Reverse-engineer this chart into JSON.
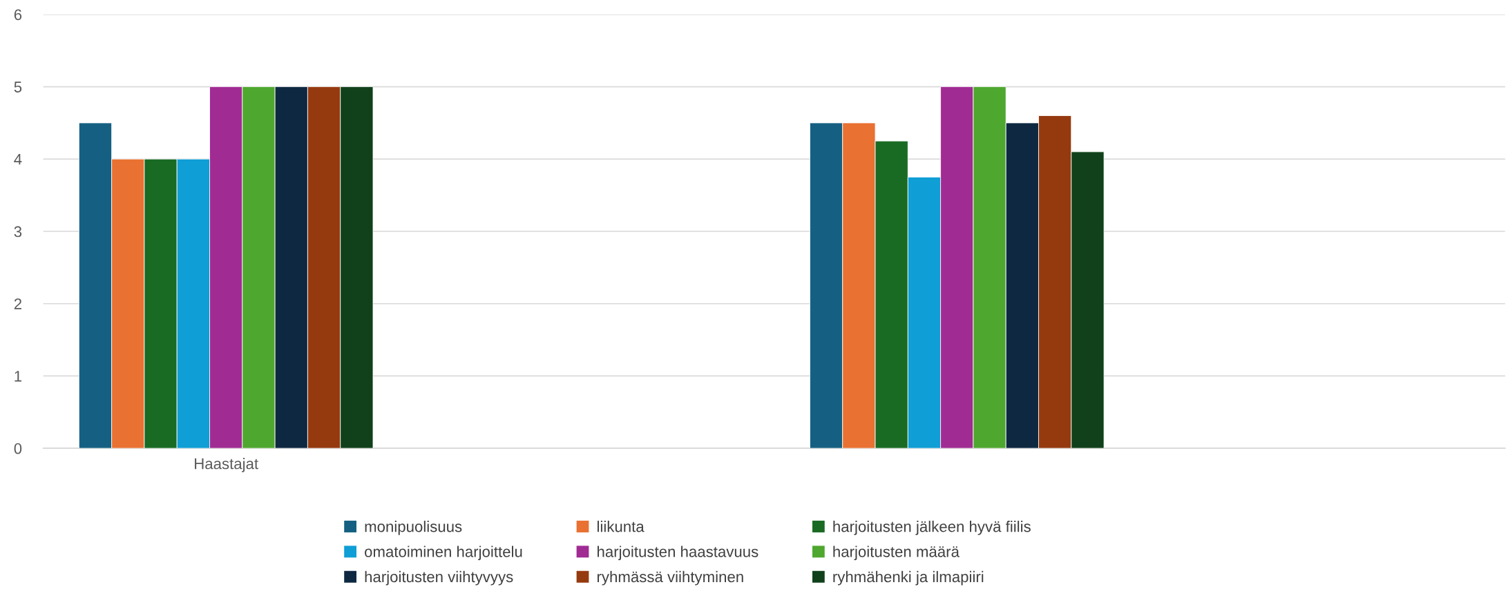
{
  "chart_data": {
    "type": "bar",
    "categories": [
      "Haastajat",
      null
    ],
    "series": [
      {
        "name": "monipuolisuus",
        "color": "#156082",
        "values": [
          4.5,
          4.5
        ]
      },
      {
        "name": "liikunta",
        "color": "#e97132",
        "values": [
          4,
          4.5
        ]
      },
      {
        "name": "harjoitusten jälkeen hyvä fiilis",
        "color": "#196b24",
        "values": [
          4,
          4.25
        ]
      },
      {
        "name": "omatoiminen harjoittelu",
        "color": "#0f9ed5",
        "values": [
          4,
          3.75
        ]
      },
      {
        "name": "harjoitusten haastavuus",
        "color": "#a02b93",
        "values": [
          5,
          5
        ]
      },
      {
        "name": "harjoitusten määrä",
        "color": "#4ea72e",
        "values": [
          5,
          5
        ]
      },
      {
        "name": "harjoitusten viihtyvyys",
        "color": "#0e2841",
        "values": [
          5,
          4.5
        ]
      },
      {
        "name": "ryhmässä viihtyminen",
        "color": "#953a0f",
        "values": [
          5,
          4.6
        ]
      },
      {
        "name": "ryhmähenki ja ilmapiiri",
        "color": "#10411a",
        "values": [
          5,
          4.1
        ]
      }
    ],
    "ylim": [
      0,
      6
    ],
    "yticks": [
      0,
      1,
      2,
      3,
      4,
      5,
      6
    ],
    "grid": "y",
    "legend": "bottom"
  }
}
